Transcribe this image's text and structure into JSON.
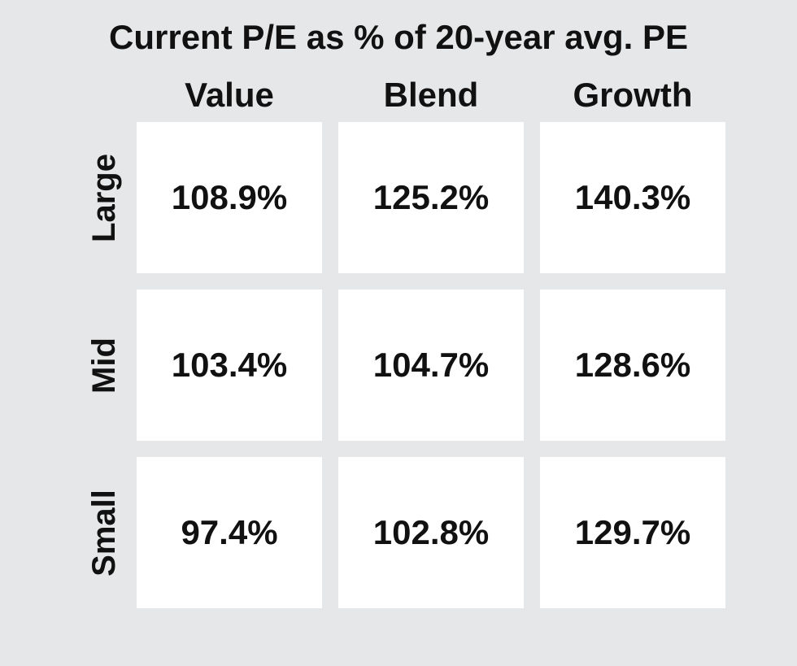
{
  "chart_data": {
    "type": "table",
    "title": "Current P/E as % of 20-year avg. PE",
    "columns": [
      "Value",
      "Blend",
      "Growth"
    ],
    "rows": [
      "Large",
      "Mid",
      "Small"
    ],
    "cells": [
      [
        "108.9%",
        "125.2%",
        "140.3%"
      ],
      [
        "103.4%",
        "104.7%",
        "128.6%"
      ],
      [
        "97.4%",
        "102.8%",
        "129.7%"
      ]
    ],
    "values": [
      [
        108.9,
        125.2,
        140.3
      ],
      [
        103.4,
        104.7,
        128.6
      ],
      [
        97.4,
        102.8,
        129.7
      ]
    ],
    "unit": "%"
  }
}
